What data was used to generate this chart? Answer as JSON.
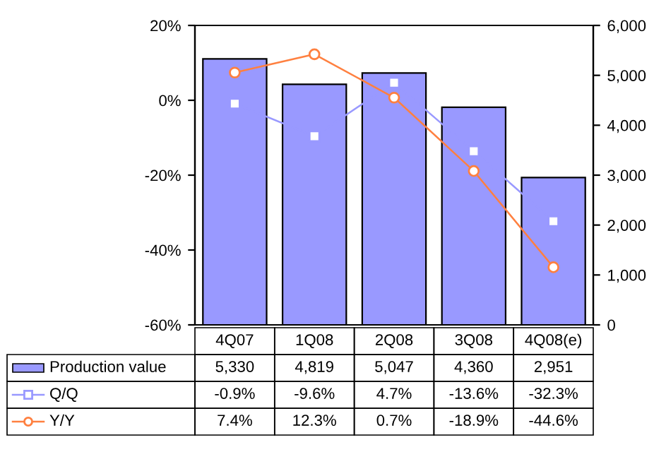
{
  "chart_data": {
    "type": "bar",
    "categories": [
      "4Q07",
      "1Q08",
      "2Q08",
      "3Q08",
      "4Q08(e)"
    ],
    "series": [
      {
        "name": "Production value",
        "axis": "y2",
        "color": "#9999ff",
        "values": [
          5330,
          4819,
          5047,
          4360,
          2951
        ],
        "value_labels": [
          "5,330",
          "4,819",
          "5,047",
          "4,360",
          "2,951"
        ]
      },
      {
        "name": "Q/Q",
        "type": "line",
        "color": "#9999ff",
        "marker": "square",
        "values": [
          -0.9,
          -9.6,
          4.7,
          -13.6,
          -32.3
        ],
        "value_labels": [
          "-0.9%",
          "-9.6%",
          "4.7%",
          "-13.6%",
          "-32.3%"
        ]
      },
      {
        "name": "Y/Y",
        "type": "line",
        "color": "#ff8040",
        "marker": "circle",
        "values": [
          7.4,
          12.3,
          0.7,
          -18.9,
          -44.6
        ],
        "value_labels": [
          "7.4%",
          "12.3%",
          "0.7%",
          "-18.9%",
          "-44.6%"
        ]
      }
    ],
    "ylim": [
      -60,
      20
    ],
    "yticks": [
      {
        "value": 20,
        "label": "20%"
      },
      {
        "value": 0,
        "label": "0%"
      },
      {
        "value": -20,
        "label": "-20%"
      },
      {
        "value": -40,
        "label": "-40%"
      },
      {
        "value": -60,
        "label": "-60%"
      }
    ],
    "y2lim": [
      0,
      6000
    ],
    "y2ticks": [
      0,
      {
        "value": 1000,
        "label": "1,000"
      },
      {
        "value": 2000,
        "label": "2,000"
      },
      {
        "value": 3000,
        "label": "3,000"
      },
      {
        "value": 4000,
        "label": "4,000"
      },
      {
        "value": 5000,
        "label": "5,000"
      },
      {
        "value": 6000,
        "label": "6,000"
      }
    ],
    "grid": false,
    "legend": "bottom"
  }
}
